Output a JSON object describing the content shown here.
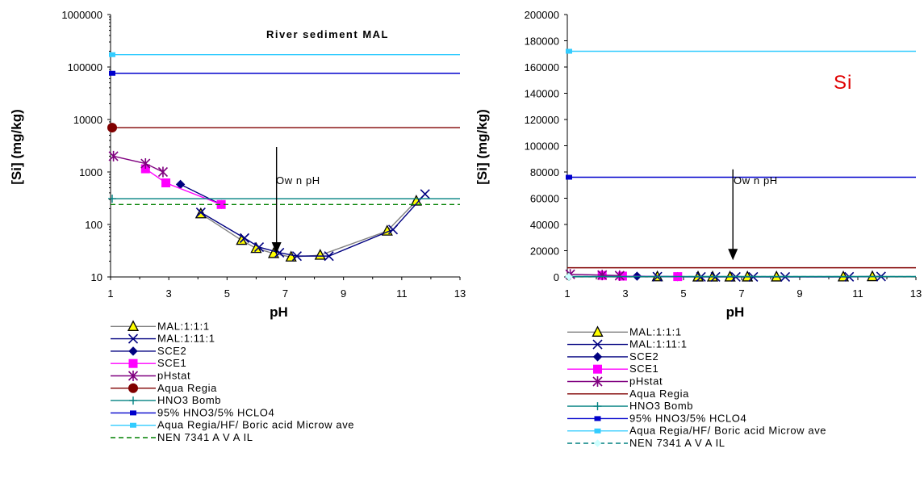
{
  "chart_data": [
    {
      "type": "line",
      "title": "River sediment MAL",
      "xlabel": "pH",
      "ylabel": "[Si] (mg/kg)",
      "yscale": "log",
      "xlim": [
        1,
        13
      ],
      "ylim": [
        10,
        1000000
      ],
      "xticks": [
        "1",
        "3",
        "5",
        "7",
        "9",
        "11",
        "13"
      ],
      "yticks": [
        "10",
        "100",
        "1000",
        "10000",
        "100000",
        "1000000"
      ],
      "grid": false,
      "legend_position": "below",
      "annotation": {
        "text": "Ow n pH",
        "x": 6.7,
        "y_from": 3000,
        "y_to": 30
      },
      "series": [
        {
          "name": "MAL:1:1:1",
          "color": "#808080",
          "marker": "triangle",
          "x": [
            4.1,
            5.5,
            6.0,
            6.6,
            7.2,
            8.2,
            10.5,
            11.5
          ],
          "y": [
            160,
            50,
            35,
            28,
            24,
            26,
            75,
            280
          ]
        },
        {
          "name": "MAL:1:11:1",
          "color": "#000080",
          "marker": "x",
          "x": [
            4.1,
            5.6,
            6.1,
            6.8,
            7.4,
            8.5,
            10.7,
            11.8
          ],
          "y": [
            170,
            55,
            37,
            29,
            25,
            25,
            80,
            380
          ]
        },
        {
          "name": "SCE2",
          "color": "#000080",
          "marker": "diamond",
          "x": [
            3.4,
            4.8
          ],
          "y": [
            580,
            240
          ]
        },
        {
          "name": "SCE1",
          "color": "#ff00ff",
          "marker": "square",
          "x": [
            2.2,
            2.9,
            4.8
          ],
          "y": [
            1150,
            620,
            240
          ]
        },
        {
          "name": "pHstat",
          "color": "#800080",
          "marker": "star",
          "x": [
            1.1,
            2.2,
            2.8
          ],
          "y": [
            2000,
            1450,
            1000
          ]
        },
        {
          "name": "Aqua Regia",
          "color": "#800000",
          "marker": "circle",
          "constant": 7000
        },
        {
          "name": "HNO3 Bomb",
          "color": "#008080",
          "marker": "plus",
          "constant": 310
        },
        {
          "name": "95% HNO3/5% HCLO4",
          "color": "#0000cc",
          "marker": "smallsquare",
          "constant": 76000
        },
        {
          "name": "Aqua Regia/HF/ Boric acid Microw ave",
          "color": "#33ccff",
          "marker": "smallsquare",
          "constant": 172000
        },
        {
          "name": "NEN 7341 A V A IL",
          "color": "#008000",
          "marker": "none",
          "dashed": true,
          "constant": 240
        }
      ]
    },
    {
      "type": "line",
      "title": "Si",
      "xlabel": "pH",
      "ylabel": "[Si] (mg/kg)",
      "yscale": "linear",
      "xlim": [
        1,
        13
      ],
      "ylim": [
        0,
        200000
      ],
      "xticks": [
        "1",
        "3",
        "5",
        "7",
        "9",
        "11",
        "13"
      ],
      "yticks": [
        "0",
        "20000",
        "40000",
        "60000",
        "80000",
        "100000",
        "120000",
        "140000",
        "160000",
        "180000",
        "200000"
      ],
      "grid": false,
      "legend_position": "below",
      "annotation": {
        "text": "Ow n pH",
        "x": 6.7,
        "y_from": 82000,
        "y_to": 14000
      },
      "series": [
        {
          "name": "MAL:1:1:1",
          "color": "#808080",
          "marker": "triangle",
          "x": [
            4.1,
            5.5,
            6.0,
            6.6,
            7.2,
            8.2,
            10.5,
            11.5
          ],
          "y": [
            160,
            50,
            35,
            28,
            24,
            26,
            75,
            280
          ]
        },
        {
          "name": "MAL:1:11:1",
          "color": "#000080",
          "marker": "x",
          "x": [
            4.1,
            5.6,
            6.1,
            6.8,
            7.4,
            8.5,
            10.7,
            11.8
          ],
          "y": [
            170,
            55,
            37,
            29,
            25,
            25,
            80,
            380
          ]
        },
        {
          "name": "SCE2",
          "color": "#000080",
          "marker": "diamond",
          "x": [
            3.4,
            4.8
          ],
          "y": [
            580,
            240
          ]
        },
        {
          "name": "SCE1",
          "color": "#ff00ff",
          "marker": "square",
          "x": [
            2.2,
            2.9,
            4.8
          ],
          "y": [
            1150,
            620,
            240
          ]
        },
        {
          "name": "pHstat",
          "color": "#800080",
          "marker": "star",
          "x": [
            1.1,
            2.2,
            2.8
          ],
          "y": [
            2000,
            1450,
            1000
          ]
        },
        {
          "name": "Aqua Regia",
          "color": "#800000",
          "marker": "none",
          "constant": 7000
        },
        {
          "name": "HNO3 Bomb",
          "color": "#008080",
          "marker": "plus",
          "constant": 310
        },
        {
          "name": "95% HNO3/5% HCLO4",
          "color": "#0000cc",
          "marker": "smallsquare",
          "constant": 76000
        },
        {
          "name": "Aqua Regia/HF/ Boric acid Microw ave",
          "color": "#33ccff",
          "marker": "smallsquare",
          "constant": 172000
        },
        {
          "name": "NEN 7341 A V A IL",
          "color": "#008080",
          "marker": "diamondlight",
          "dashed": true,
          "constant": 240
        }
      ]
    }
  ]
}
